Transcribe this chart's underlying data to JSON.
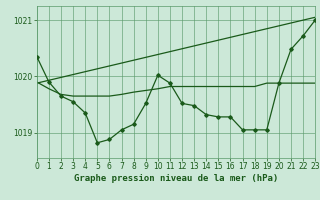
{
  "background_color": "#cce8d8",
  "grid_color": "#5a9a6a",
  "line_color": "#1a5a1a",
  "title": "Graphe pression niveau de la mer (hPa)",
  "xlim": [
    0,
    23
  ],
  "ylim": [
    1018.55,
    1021.25
  ],
  "yticks": [
    1019,
    1020,
    1021
  ],
  "xticks": [
    0,
    1,
    2,
    3,
    4,
    5,
    6,
    7,
    8,
    9,
    10,
    11,
    12,
    13,
    14,
    15,
    16,
    17,
    18,
    19,
    20,
    21,
    22,
    23
  ],
  "series_main_x": [
    0,
    1,
    2,
    3,
    4,
    5,
    6,
    7,
    8,
    9,
    10,
    11,
    12,
    13,
    14,
    15,
    16,
    17,
    18,
    19,
    20,
    21,
    22,
    23
  ],
  "series_main_y": [
    1020.35,
    1019.9,
    1019.65,
    1019.55,
    1019.35,
    1018.82,
    1018.88,
    1019.05,
    1019.15,
    1019.52,
    1020.02,
    1019.88,
    1019.52,
    1019.48,
    1019.32,
    1019.28,
    1019.28,
    1019.05,
    1019.05,
    1019.05,
    1019.88,
    1020.48,
    1020.72,
    1021.0
  ],
  "series_flat_x": [
    0,
    1,
    2,
    3,
    4,
    5,
    6,
    7,
    8,
    9,
    10,
    11,
    12,
    13,
    14,
    15,
    16,
    17,
    18,
    19,
    20,
    21,
    22,
    23
  ],
  "series_flat_y": [
    1019.9,
    1019.78,
    1019.68,
    1019.65,
    1019.65,
    1019.65,
    1019.65,
    1019.68,
    1019.72,
    1019.75,
    1019.78,
    1019.82,
    1019.82,
    1019.82,
    1019.82,
    1019.82,
    1019.82,
    1019.82,
    1019.82,
    1019.88,
    1019.88,
    1019.88,
    1019.88,
    1019.88
  ],
  "series_trend_x": [
    0,
    23
  ],
  "series_trend_y": [
    1019.88,
    1021.05
  ],
  "tick_fontsize": 5.5,
  "title_fontsize": 6.5
}
